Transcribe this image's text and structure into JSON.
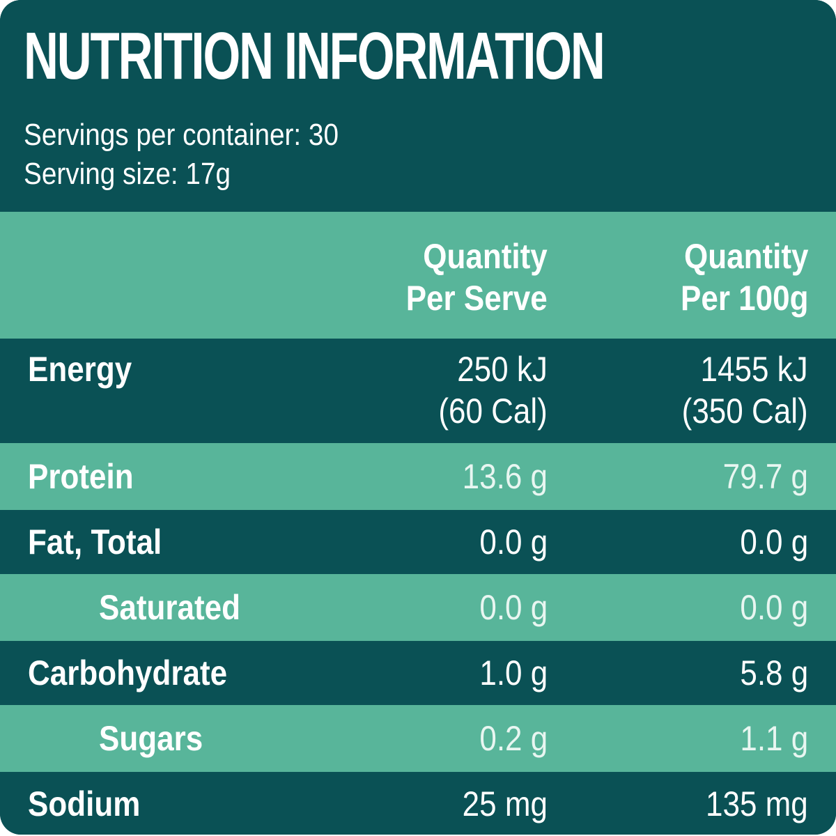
{
  "header": {
    "title": "NUTRITION INFORMATION",
    "servings_per_container": "Servings per container: 30",
    "serving_size": "Serving size: 17g"
  },
  "colors": {
    "dark_teal": "#0a5155",
    "light_green": "#58b59a",
    "text": "#ffffff"
  },
  "table": {
    "columns": [
      {
        "line1": "Quantity",
        "line2": "Per Serve"
      },
      {
        "line1": "Quantity",
        "line2": "Per 100g"
      }
    ],
    "rows": [
      {
        "label": "Energy",
        "per_serve": "250 kJ",
        "per_serve_sub": "(60 Cal)",
        "per_100g": "1455 kJ",
        "per_100g_sub": "(350 Cal)",
        "indent": false
      },
      {
        "label": "Protein",
        "per_serve": "13.6 g",
        "per_100g": "79.7 g",
        "indent": false
      },
      {
        "label": "Fat, Total",
        "per_serve": "0.0 g",
        "per_100g": "0.0 g",
        "indent": false
      },
      {
        "label": "Saturated",
        "per_serve": "0.0 g",
        "per_100g": "0.0 g",
        "indent": true
      },
      {
        "label": "Carbohydrate",
        "per_serve": "1.0 g",
        "per_100g": "5.8 g",
        "indent": false
      },
      {
        "label": "Sugars",
        "per_serve": "0.2 g",
        "per_100g": "1.1 g",
        "indent": true
      },
      {
        "label": "Sodium",
        "per_serve": "25 mg",
        "per_100g": "135 mg",
        "indent": false
      }
    ]
  }
}
